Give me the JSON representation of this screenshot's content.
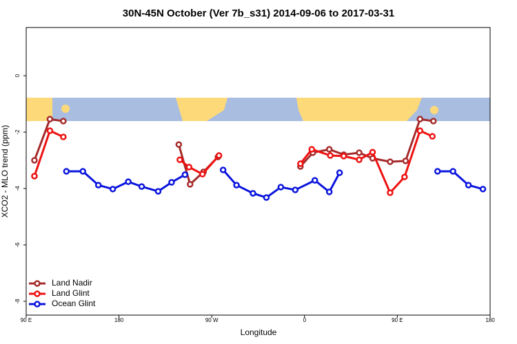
{
  "chart_data": {
    "type": "line",
    "title": "30N-45N October (Ver 7b_s31)   2014-09-06 to 2017-03-31",
    "x_label": "Longitude",
    "y_label": "XCO2 - MLO trend (ppm)",
    "xlim": [
      90,
      540
    ],
    "xticks": [
      {
        "value": 90,
        "label": "90 E"
      },
      180,
      {
        "value": 270,
        "label": "90 W"
      },
      {
        "value": 360,
        "label": "0"
      },
      {
        "value": 450,
        "label": "90 E"
      },
      {
        "value": 540,
        "label": "180"
      }
    ],
    "ylim": [
      -8.49,
      1.71
    ],
    "yticks": [
      0,
      -2,
      -4,
      -6,
      -8
    ],
    "legend": "bottom-left",
    "series": [
      {
        "name": "Land Nadir",
        "color": "#a52a2a",
        "x": [
          98,
          113,
          126,
          null,
          238,
          249,
          262,
          276,
          null,
          356,
          368,
          384,
          398,
          413,
          426,
          443,
          458,
          472,
          485
        ],
        "values": [
          -3.0,
          -1.54,
          -1.61,
          null,
          -2.44,
          -3.85,
          -3.41,
          -2.88,
          null,
          -3.22,
          -2.73,
          -2.61,
          -2.8,
          -2.73,
          -2.93,
          -3.05,
          -3.02,
          -1.54,
          -1.61
        ]
      },
      {
        "name": "Land Glint",
        "color": "#ee1111",
        "x": [
          98,
          113,
          126,
          null,
          239,
          248,
          261,
          277,
          null,
          356,
          367,
          385,
          398,
          413,
          426,
          443,
          457,
          472,
          484
        ],
        "values": [
          -3.56,
          -1.95,
          -2.17,
          null,
          -2.98,
          -3.24,
          -3.49,
          -2.83,
          null,
          -3.12,
          -2.61,
          -2.83,
          -2.85,
          -2.98,
          -2.71,
          -4.15,
          -3.59,
          -1.95,
          -2.15
        ]
      },
      {
        "name": "Ocean Glint",
        "color": "#0a14dd",
        "x": [
          129,
          145,
          160,
          174,
          189,
          202,
          218,
          231,
          244,
          null,
          281,
          294,
          310,
          323,
          337,
          351,
          370,
          384,
          394,
          null,
          489,
          504,
          519,
          533
        ],
        "values": [
          -3.39,
          -3.39,
          -3.88,
          -4.02,
          -3.76,
          -3.93,
          -4.1,
          -3.78,
          -3.51,
          null,
          -3.34,
          -3.88,
          -4.17,
          -4.32,
          -3.95,
          -4.05,
          -3.71,
          -4.12,
          -3.44,
          null,
          -3.39,
          -3.39,
          -3.88,
          -4.02
        ]
      }
    ]
  }
}
